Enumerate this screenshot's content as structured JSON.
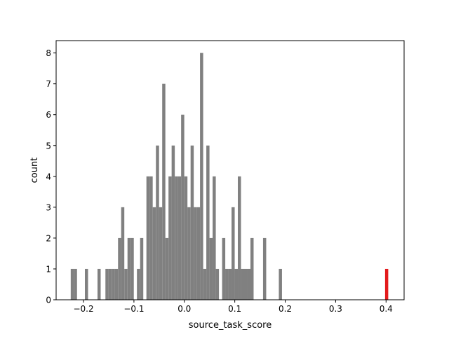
{
  "chart_data": {
    "type": "bar",
    "title": "",
    "xlabel": "source_task_score",
    "ylabel": "count",
    "xlim": [
      -0.2543,
      0.4358
    ],
    "ylim": [
      0,
      8.4
    ],
    "x_ticks": [
      -0.2,
      -0.1,
      0.0,
      0.1,
      0.2,
      0.3,
      0.4
    ],
    "x_tick_labels": [
      "−0.2",
      "−0.1",
      "0.0",
      "0.1",
      "0.2",
      "0.3",
      "0.4"
    ],
    "y_ticks": [
      0,
      1,
      2,
      3,
      4,
      5,
      6,
      7,
      8
    ],
    "y_tick_labels": [
      "0",
      "1",
      "2",
      "3",
      "4",
      "5",
      "6",
      "7",
      "8"
    ],
    "grid": false,
    "legend": "none",
    "bin_width": 0.00626,
    "series": [
      {
        "color": "#808080",
        "bars": [
          {
            "x": -0.2222,
            "value": 1
          },
          {
            "x": -0.216,
            "value": 1
          },
          {
            "x": -0.1941,
            "value": 1
          },
          {
            "x": -0.1691,
            "value": 1
          },
          {
            "x": -0.1534,
            "value": 1
          },
          {
            "x": -0.1472,
            "value": 1
          },
          {
            "x": -0.1409,
            "value": 1
          },
          {
            "x": -0.1347,
            "value": 1
          },
          {
            "x": -0.1284,
            "value": 2
          },
          {
            "x": -0.1222,
            "value": 3
          },
          {
            "x": -0.1159,
            "value": 1
          },
          {
            "x": -0.1096,
            "value": 2
          },
          {
            "x": -0.1034,
            "value": 2
          },
          {
            "x": -0.0909,
            "value": 1
          },
          {
            "x": -0.0846,
            "value": 2
          },
          {
            "x": -0.0721,
            "value": 4
          },
          {
            "x": -0.0659,
            "value": 4
          },
          {
            "x": -0.0596,
            "value": 3
          },
          {
            "x": -0.0533,
            "value": 5
          },
          {
            "x": -0.0471,
            "value": 3
          },
          {
            "x": -0.0408,
            "value": 7
          },
          {
            "x": -0.0346,
            "value": 2
          },
          {
            "x": -0.0283,
            "value": 4
          },
          {
            "x": -0.0221,
            "value": 5
          },
          {
            "x": -0.0158,
            "value": 4
          },
          {
            "x": -0.0096,
            "value": 4
          },
          {
            "x": -0.0033,
            "value": 6
          },
          {
            "x": 0.003,
            "value": 4
          },
          {
            "x": 0.0092,
            "value": 3
          },
          {
            "x": 0.0155,
            "value": 5
          },
          {
            "x": 0.0217,
            "value": 3
          },
          {
            "x": 0.028,
            "value": 3
          },
          {
            "x": 0.0342,
            "value": 8
          },
          {
            "x": 0.0405,
            "value": 1
          },
          {
            "x": 0.0467,
            "value": 5
          },
          {
            "x": 0.053,
            "value": 2
          },
          {
            "x": 0.0592,
            "value": 4
          },
          {
            "x": 0.0655,
            "value": 1
          },
          {
            "x": 0.078,
            "value": 2
          },
          {
            "x": 0.0842,
            "value": 1
          },
          {
            "x": 0.0905,
            "value": 1
          },
          {
            "x": 0.0967,
            "value": 3
          },
          {
            "x": 0.103,
            "value": 1
          },
          {
            "x": 0.1092,
            "value": 4
          },
          {
            "x": 0.1155,
            "value": 1
          },
          {
            "x": 0.1217,
            "value": 1
          },
          {
            "x": 0.128,
            "value": 1
          },
          {
            "x": 0.1342,
            "value": 2
          },
          {
            "x": 0.1592,
            "value": 2
          },
          {
            "x": 0.1905,
            "value": 1
          }
        ]
      },
      {
        "color": "#e31a1c",
        "bars": [
          {
            "x": 0.4012,
            "value": 1
          }
        ]
      }
    ]
  }
}
